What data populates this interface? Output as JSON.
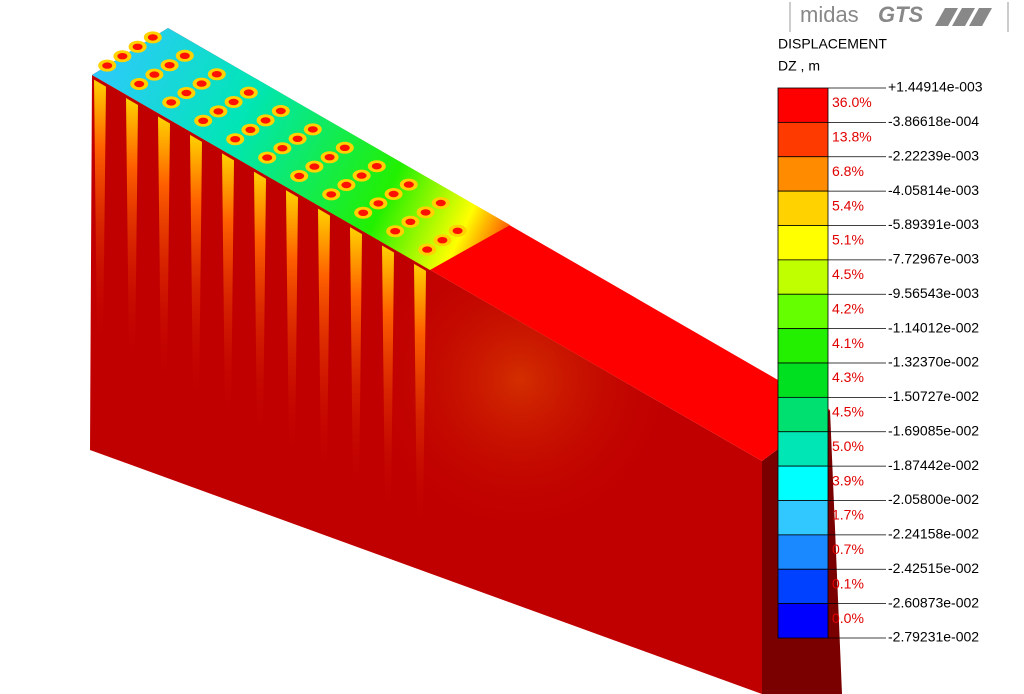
{
  "logo": {
    "name": "midas",
    "product": "GTS"
  },
  "legend": {
    "title": "DISPLACEMENT",
    "component": "DZ , m",
    "levels": [
      "+1.44914e-003",
      "-3.86618e-004",
      "-2.22239e-003",
      "-4.05814e-003",
      "-5.89391e-003",
      "-7.72967e-003",
      "-9.56543e-003",
      "-1.14012e-002",
      "-1.32370e-002",
      "-1.50727e-002",
      "-1.69085e-002",
      "-1.87442e-002",
      "-2.05800e-002",
      "-2.24158e-002",
      "-2.42515e-002",
      "-2.60873e-002",
      "-2.79231e-002"
    ],
    "bands": [
      {
        "percent": "36.0%",
        "color": "#ff0000"
      },
      {
        "percent": "13.8%",
        "color": "#ff3a00"
      },
      {
        "percent": "6.8%",
        "color": "#ff8c00"
      },
      {
        "percent": "5.4%",
        "color": "#ffd200"
      },
      {
        "percent": "5.1%",
        "color": "#ffff00"
      },
      {
        "percent": "4.5%",
        "color": "#c0ff00"
      },
      {
        "percent": "4.2%",
        "color": "#66ff00"
      },
      {
        "percent": "4.1%",
        "color": "#22f000"
      },
      {
        "percent": "4.3%",
        "color": "#00e020"
      },
      {
        "percent": "4.5%",
        "color": "#00e070"
      },
      {
        "percent": "5.0%",
        "color": "#00e6b4"
      },
      {
        "percent": "3.9%",
        "color": "#00ffff"
      },
      {
        "percent": "1.7%",
        "color": "#30c8ff"
      },
      {
        "percent": "0.7%",
        "color": "#1a88ff"
      },
      {
        "percent": "0.1%",
        "color": "#0040ff"
      },
      {
        "percent": "0.0%",
        "color": "#0000ff"
      }
    ]
  }
}
